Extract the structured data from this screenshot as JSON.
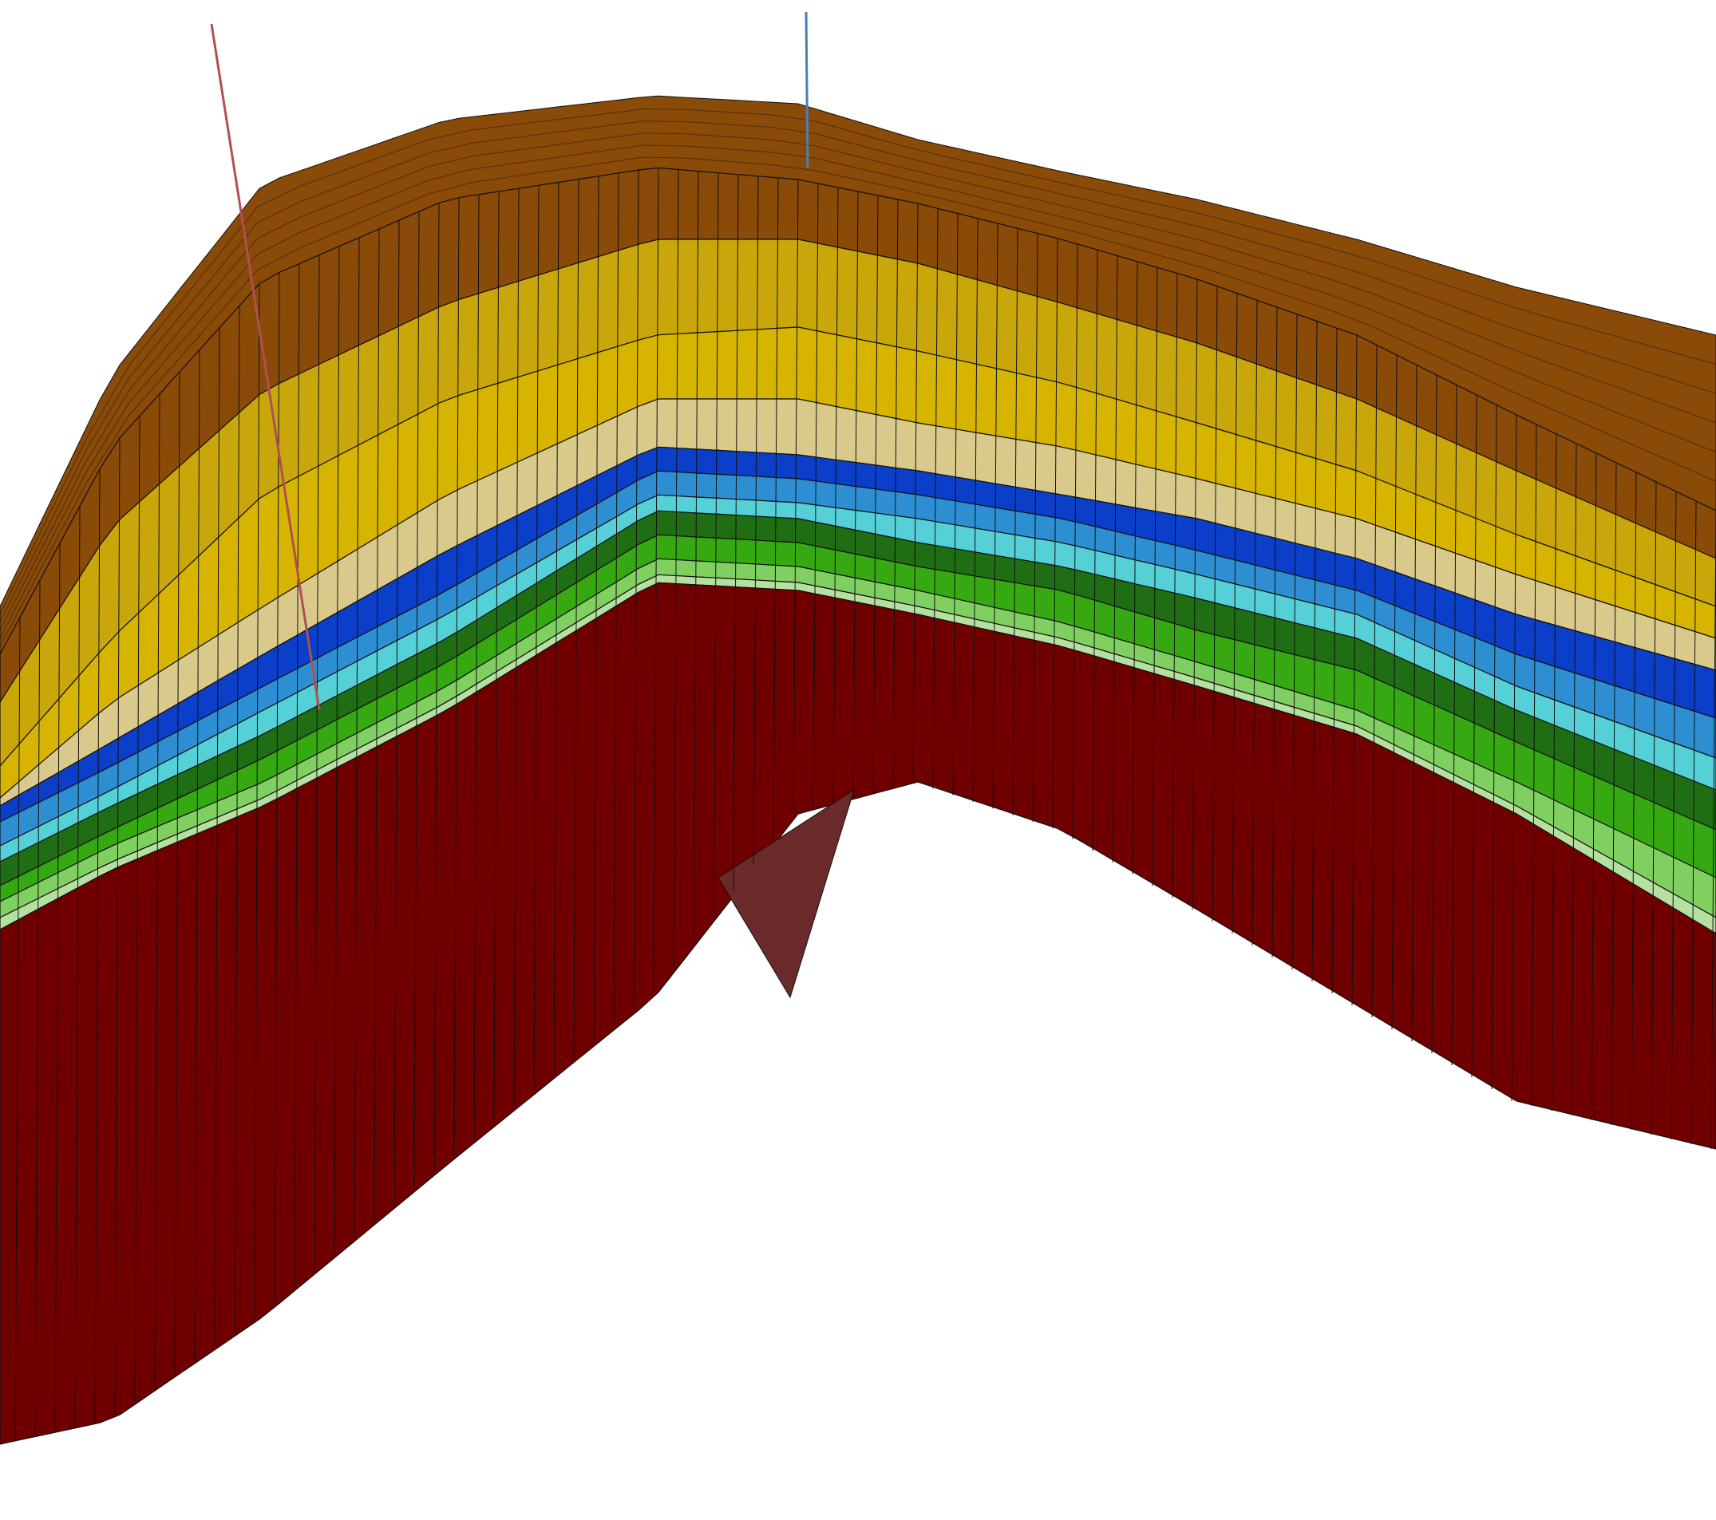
{
  "scene": {
    "description_visible_text": "",
    "background_color": "#ffffff",
    "grid_line_color": "#111111",
    "top_surface_color": "#8a4a08",
    "layers": [
      {
        "name": "topsoil",
        "color": "#8a4a08"
      },
      {
        "name": "yellow-upper",
        "color": "#c9a70a"
      },
      {
        "name": "yellow-lower",
        "color": "#d6b400"
      },
      {
        "name": "tan",
        "color": "#d9c98a"
      },
      {
        "name": "dark-blue",
        "color": "#0b3ec9"
      },
      {
        "name": "mid-blue",
        "color": "#2d8fd2"
      },
      {
        "name": "cyan",
        "color": "#55d0d6"
      },
      {
        "name": "dark-green",
        "color": "#1f6e14"
      },
      {
        "name": "green",
        "color": "#36a812"
      },
      {
        "name": "light-green",
        "color": "#7fd060"
      },
      {
        "name": "pale-green",
        "color": "#b5e0a0"
      },
      {
        "name": "basement",
        "color": "#700000"
      }
    ],
    "wells": [
      {
        "name": "well-left",
        "color": "#b05050"
      },
      {
        "name": "well-center",
        "color": "#4a7fb5"
      }
    ],
    "fault_face_color": "#6a2a2a"
  }
}
